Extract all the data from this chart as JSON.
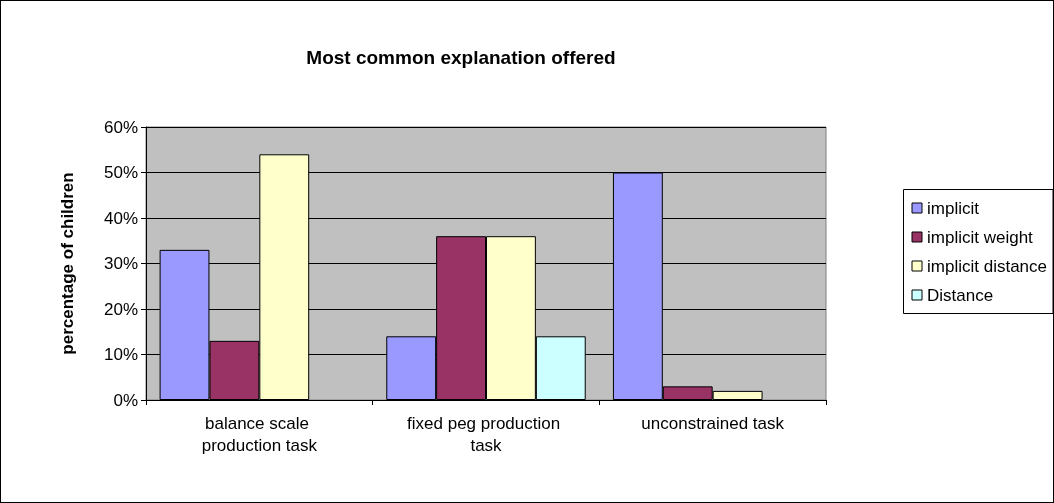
{
  "chart_data": {
    "type": "bar",
    "title": "Most common explanation offered",
    "ylabel": "percentage of children",
    "categories": [
      "balance scale production task",
      "fixed peg production task",
      "unconstrained task"
    ],
    "series": [
      {
        "name": "implicit",
        "color": "#9999ff",
        "values": [
          33,
          14,
          50
        ]
      },
      {
        "name": "implicit weight",
        "color": "#993366",
        "values": [
          13,
          36,
          3
        ]
      },
      {
        "name": "implicit distance",
        "color": "#ffffcc",
        "values": [
          54,
          36,
          2
        ]
      },
      {
        "name": "Distance",
        "color": "#ccffff",
        "values": [
          null,
          14,
          null
        ]
      }
    ],
    "ylim": [
      0,
      60
    ],
    "yticks": [
      {
        "value": 0,
        "label": "0%"
      },
      {
        "value": 10,
        "label": "10%"
      },
      {
        "value": 20,
        "label": "20%"
      },
      {
        "value": 30,
        "label": "30%"
      },
      {
        "value": 40,
        "label": "40%"
      },
      {
        "value": 50,
        "label": "50%"
      },
      {
        "value": 60,
        "label": "60%"
      }
    ],
    "grid": "y",
    "legend": "right"
  }
}
